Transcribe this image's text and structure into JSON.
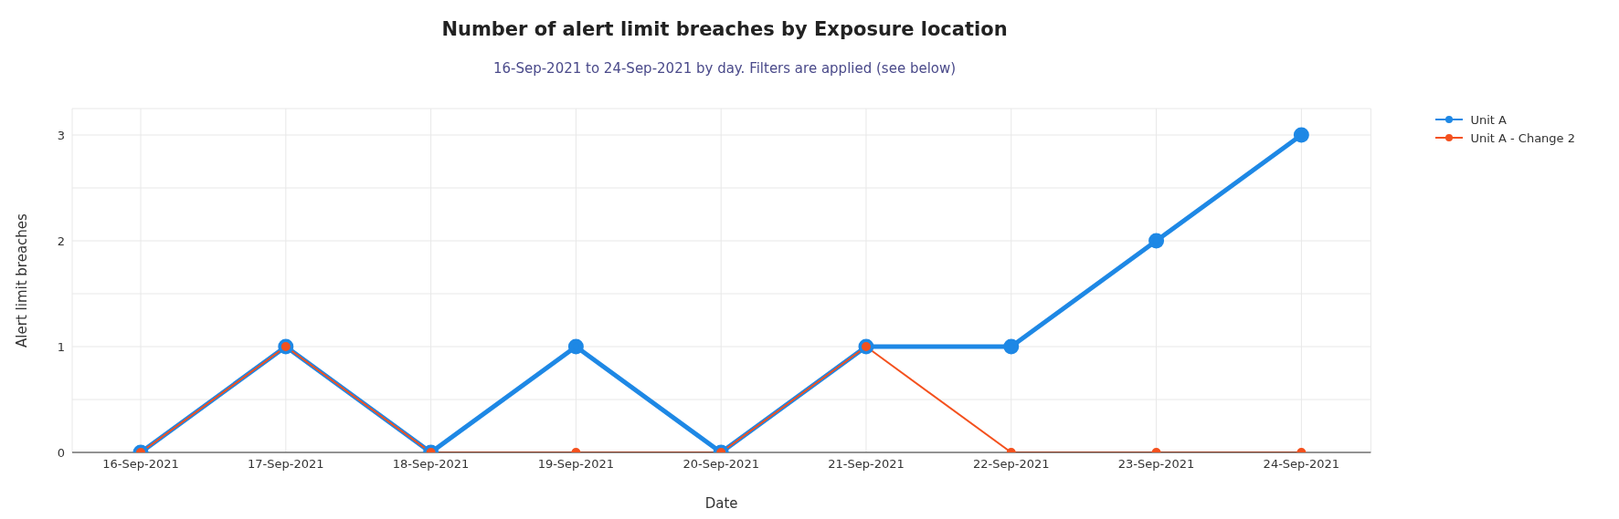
{
  "chart_data": {
    "type": "line",
    "title": "Number of alert limit breaches by Exposure location",
    "subtitle": "16-Sep-2021 to 24-Sep-2021 by day. Filters are applied (see below)",
    "xlabel": "Date",
    "ylabel": "Alert limit breaches",
    "categories": [
      "16-Sep-2021",
      "17-Sep-2021",
      "18-Sep-2021",
      "19-Sep-2021",
      "20-Sep-2021",
      "21-Sep-2021",
      "22-Sep-2021",
      "23-Sep-2021",
      "24-Sep-2021"
    ],
    "series": [
      {
        "name": "Unit A",
        "color": "#1e88e5",
        "values": [
          0,
          1,
          0,
          1,
          0,
          1,
          1,
          2,
          3
        ]
      },
      {
        "name": "Unit A - Change 2",
        "color": "#f4511e",
        "values": [
          0,
          1,
          0,
          0,
          0,
          1,
          0,
          0,
          0
        ]
      }
    ],
    "ylim": [
      0,
      3.25
    ],
    "yticks": [
      0,
      {
        "value": 0.5,
        "label": null
      },
      1,
      {
        "value": 1.5,
        "label": null
      },
      2,
      {
        "value": 2.5,
        "label": null
      },
      3
    ],
    "grid": true,
    "legend": "top right",
    "marker": "circle",
    "line_style": "solid"
  }
}
